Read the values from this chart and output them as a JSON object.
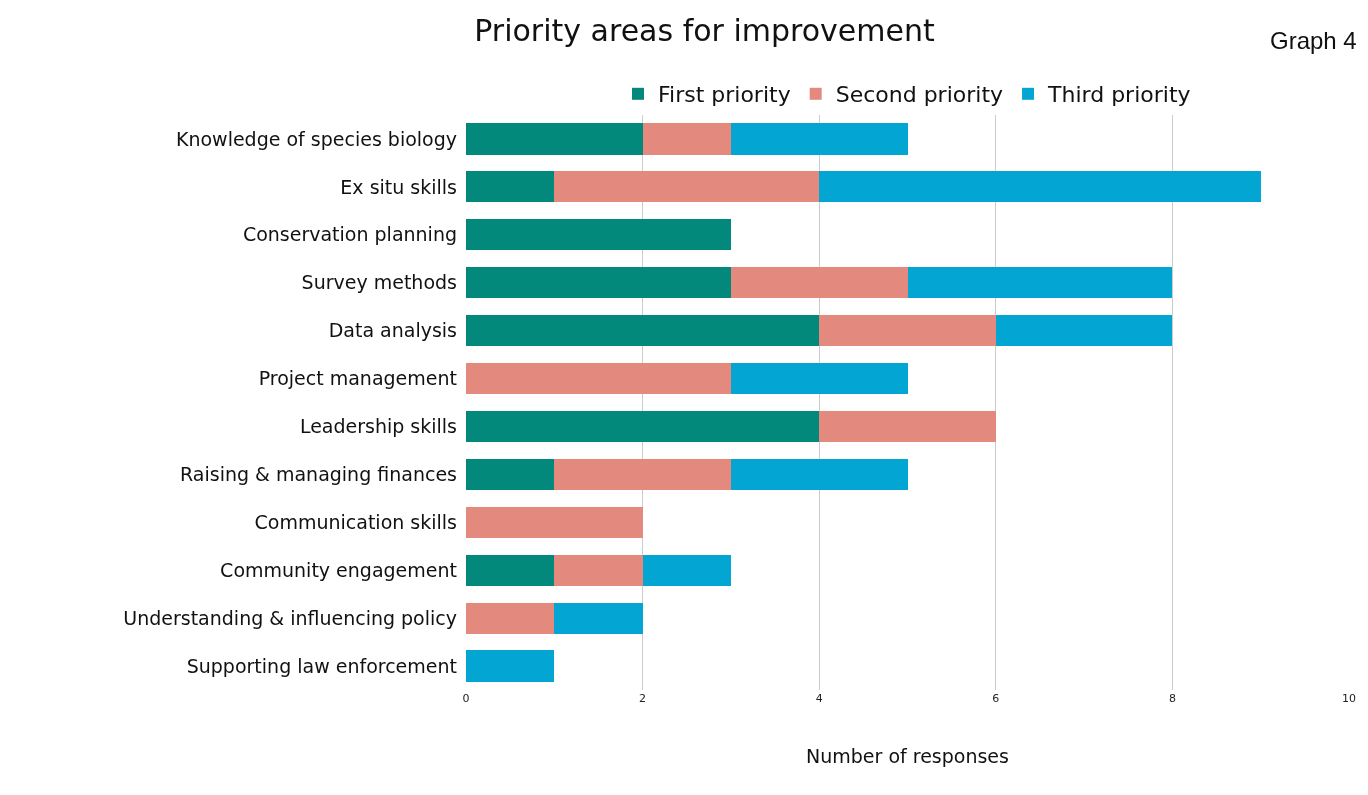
{
  "chart_data": {
    "type": "bar",
    "orientation": "horizontal",
    "stacked": true,
    "title": "Priority areas for improvement",
    "xlabel": "Number of responses",
    "annotations": [
      "Graph 4"
    ],
    "categories": [
      "Knowledge of species biology",
      "Ex situ skills",
      "Conservation planning",
      "Survey methods",
      "Data analysis",
      "Project management",
      "Leadership skills",
      "Raising & managing finances",
      "Communication skills",
      "Community engagement",
      "Understanding & influencing policy",
      "Supporting law enforcement"
    ],
    "series": [
      {
        "name": "First priority",
        "color": "#03897c",
        "values": [
          2,
          1,
          3,
          3,
          4,
          0,
          4,
          1,
          0,
          1,
          0,
          0
        ]
      },
      {
        "name": "Second priority",
        "color": "#e3897e",
        "values": [
          1,
          3,
          0,
          2,
          2,
          3,
          2,
          2,
          2,
          1,
          1,
          0
        ]
      },
      {
        "name": "Third priority",
        "color": "#03a5d3",
        "values": [
          2,
          5,
          0,
          3,
          2,
          2,
          0,
          2,
          0,
          1,
          1,
          1
        ]
      }
    ],
    "xlim": [
      0,
      10
    ],
    "xticks": [
      0,
      2,
      4,
      6,
      8,
      10
    ],
    "grid": "x",
    "legend": "top"
  }
}
